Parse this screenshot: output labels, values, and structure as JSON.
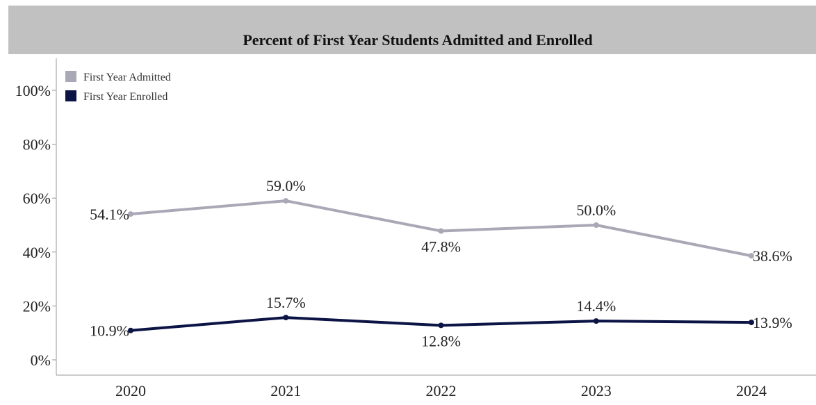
{
  "chart_data": {
    "type": "line",
    "title": "Percent of First Year Students Admitted and Enrolled",
    "categories": [
      "2020",
      "2021",
      "2022",
      "2023",
      "2024"
    ],
    "ylim": [
      0,
      100
    ],
    "yticks": [
      "0%",
      "20%",
      "40%",
      "60%",
      "80%",
      "100%"
    ],
    "ytick_values": [
      0,
      20,
      40,
      60,
      80,
      100
    ],
    "grid": false,
    "legend_position": "top-left",
    "series": [
      {
        "name": "First Year Admitted",
        "color": "#a9a8b6",
        "values": [
          54.1,
          59.0,
          47.8,
          50.0,
          38.6
        ],
        "labels": [
          "54.1%",
          "59.0%",
          "47.8%",
          "50.0%",
          "38.6%"
        ]
      },
      {
        "name": "First Year Enrolled",
        "color": "#0c1445",
        "values": [
          10.9,
          15.7,
          12.8,
          14.4,
          13.9
        ],
        "labels": [
          "10.9%",
          "15.7%",
          "12.8%",
          "14.4%",
          "13.9%"
        ]
      }
    ]
  },
  "colors": {
    "title_band": "#c1c1c1",
    "axis": "#999999"
  }
}
